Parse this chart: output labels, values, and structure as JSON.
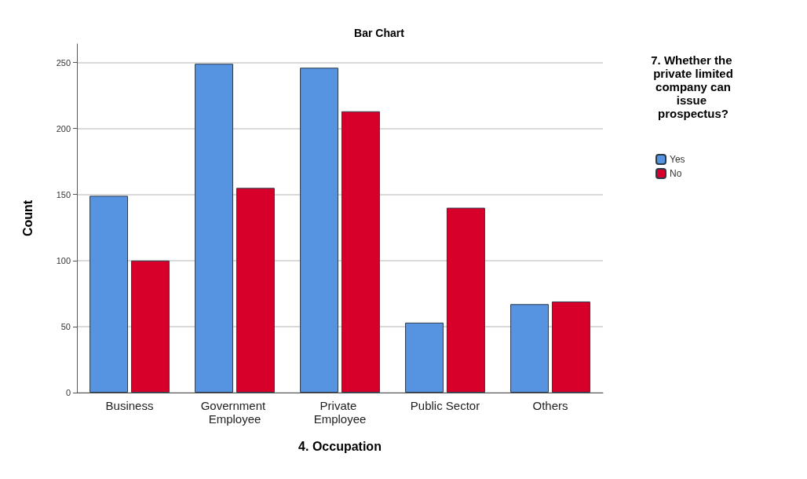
{
  "chart_data": {
    "type": "bar",
    "title": "Bar Chart",
    "xlabel": "4. Occupation",
    "ylabel": "Count",
    "legend_title": "7. Whether the private limited company can issue prospectus?",
    "categories": [
      "Business",
      "Government Employee",
      "Private Employee",
      "Public Sector",
      "Others"
    ],
    "series": [
      {
        "name": "Yes",
        "color": "#5694e2",
        "values": [
          149,
          249,
          246,
          53,
          67
        ]
      },
      {
        "name": "No",
        "color": "#d6002b",
        "values": [
          100,
          155,
          213,
          140,
          69
        ]
      }
    ],
    "ylim": [
      0,
      264
    ],
    "yticks": [
      0,
      50,
      100,
      150,
      200,
      250
    ],
    "grid": "y",
    "legend": "top right"
  }
}
